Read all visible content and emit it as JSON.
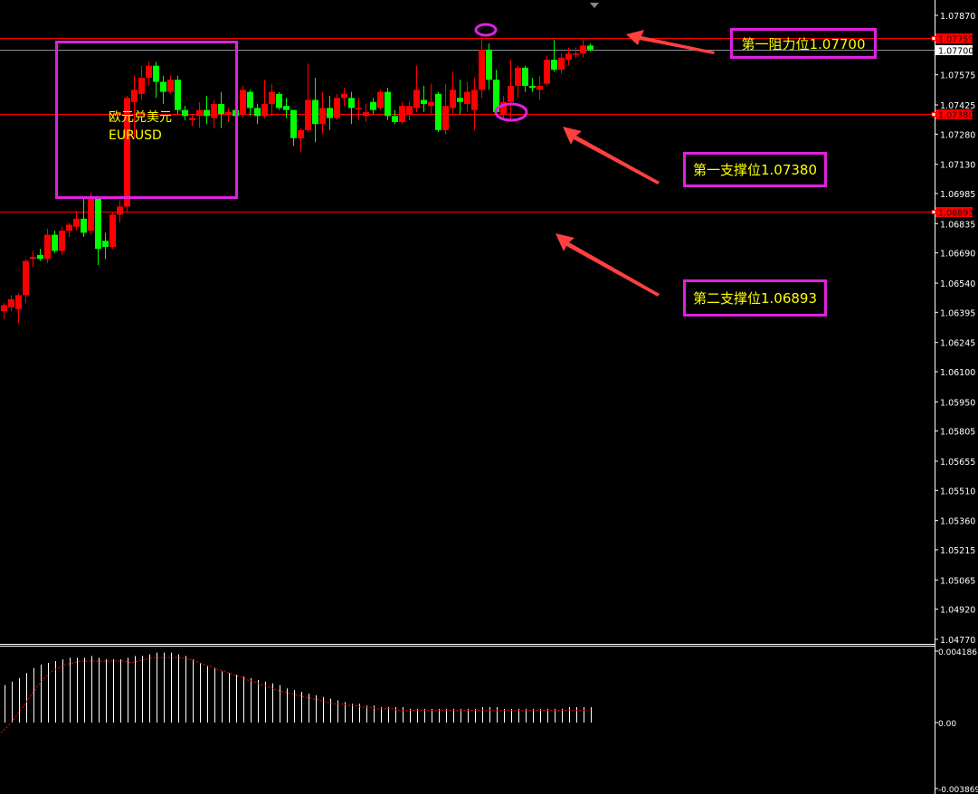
{
  "chart_data": {
    "type": "candlestick",
    "symbol_label": {
      "cn": "欧元兑美元",
      "en": "EURUSD"
    },
    "price_axis": {
      "range": [
        1.0477,
        1.0787
      ],
      "ticks": [
        "1.07870",
        "1.07575",
        "1.07425",
        "1.07280",
        "1.07130",
        "1.06985",
        "1.06835",
        "1.06690",
        "1.06540",
        "1.06395",
        "1.06245",
        "1.06100",
        "1.05950",
        "1.05805",
        "1.05655",
        "1.05510",
        "1.05360",
        "1.05215",
        "1.05065",
        "1.04920",
        "1.04770"
      ]
    },
    "price_markers": [
      {
        "price": "1.07759",
        "color": "#ff0000",
        "style": "red-line"
      },
      {
        "price": "1.07700",
        "color": "#ffffff",
        "style": "gray-line"
      },
      {
        "price": "1.07380",
        "color": "#ff0000",
        "style": "red-line"
      },
      {
        "price": "1.06893",
        "color": "#ff0000",
        "style": "red-line"
      }
    ],
    "colors": {
      "bull": "#ff0000",
      "bear": "#00ff00",
      "annotation": "#e020e0",
      "text": "#ffff00",
      "arrow": "#ff4040"
    },
    "candles_ohlc": [
      [
        1.064,
        1.0644,
        1.0636,
        1.0643
      ],
      [
        1.0642,
        1.0648,
        1.064,
        1.0646
      ],
      [
        1.0641,
        1.0649,
        1.0634,
        1.0648
      ],
      [
        1.0648,
        1.0666,
        1.0644,
        1.0665
      ],
      [
        1.0666,
        1.067,
        1.0662,
        1.0667
      ],
      [
        1.0668,
        1.0671,
        1.0665,
        1.0666
      ],
      [
        1.0666,
        1.0681,
        1.0664,
        1.0678
      ],
      [
        1.0678,
        1.068,
        1.0669,
        1.067
      ],
      [
        1.067,
        1.0682,
        1.0668,
        1.068
      ],
      [
        1.068,
        1.0684,
        1.0677,
        1.0683
      ],
      [
        1.0682,
        1.069,
        1.068,
        1.0686
      ],
      [
        1.0686,
        1.0696,
        1.0677,
        1.0679
      ],
      [
        1.068,
        1.0699,
        1.0678,
        1.0697
      ],
      [
        1.0696,
        1.0697,
        1.0663,
        1.0671
      ],
      [
        1.0675,
        1.0679,
        1.0666,
        1.0672
      ],
      [
        1.0672,
        1.0689,
        1.0671,
        1.0688
      ],
      [
        1.0688,
        1.0695,
        1.0684,
        1.0692
      ],
      [
        1.0692,
        1.0747,
        1.0689,
        1.0746
      ],
      [
        1.0744,
        1.0757,
        1.0726,
        1.075
      ],
      [
        1.0748,
        1.0762,
        1.0745,
        1.0756
      ],
      [
        1.0756,
        1.0764,
        1.0752,
        1.0762
      ],
      [
        1.0762,
        1.0764,
        1.0746,
        1.0754
      ],
      [
        1.0754,
        1.0757,
        1.0743,
        1.0749
      ],
      [
        1.0749,
        1.0757,
        1.0748,
        1.0755
      ],
      [
        1.0755,
        1.0757,
        1.0738,
        1.074
      ],
      [
        1.074,
        1.0742,
        1.0735,
        1.0737
      ],
      [
        1.0735,
        1.0738,
        1.0732,
        1.0736
      ],
      [
        1.0737,
        1.0744,
        1.0731,
        1.074
      ],
      [
        1.074,
        1.0747,
        1.0733,
        1.0737
      ],
      [
        1.0736,
        1.0745,
        1.0731,
        1.0743
      ],
      [
        1.0743,
        1.0749,
        1.0731,
        1.0738
      ],
      [
        1.0738,
        1.0741,
        1.0734,
        1.0739
      ],
      [
        1.074,
        1.0742,
        1.0736,
        1.0737
      ],
      [
        1.0738,
        1.0752,
        1.0736,
        1.075
      ],
      [
        1.0749,
        1.075,
        1.0737,
        1.0741
      ],
      [
        1.0741,
        1.0743,
        1.0733,
        1.0737
      ],
      [
        1.0737,
        1.0755,
        1.0736,
        1.0743
      ],
      [
        1.0743,
        1.0753,
        1.0737,
        1.0749
      ],
      [
        1.0748,
        1.0749,
        1.074,
        1.0741
      ],
      [
        1.0742,
        1.0746,
        1.0736,
        1.074
      ],
      [
        1.074,
        1.074,
        1.0722,
        1.0726
      ],
      [
        1.0726,
        1.0731,
        1.0719,
        1.073
      ],
      [
        1.073,
        1.0763,
        1.0729,
        1.0745
      ],
      [
        1.0745,
        1.0756,
        1.0724,
        1.0733
      ],
      [
        1.0733,
        1.0749,
        1.0728,
        1.0741
      ],
      [
        1.0741,
        1.0747,
        1.073,
        1.0736
      ],
      [
        1.0736,
        1.0748,
        1.0735,
        1.0746
      ],
      [
        1.0746,
        1.0751,
        1.0742,
        1.0748
      ],
      [
        1.0746,
        1.0749,
        1.0733,
        1.0741
      ],
      [
        1.0741,
        1.0746,
        1.0735,
        1.0741
      ],
      [
        1.0737,
        1.0743,
        1.0734,
        1.0739
      ],
      [
        1.0744,
        1.0746,
        1.0738,
        1.074
      ],
      [
        1.0741,
        1.075,
        1.074,
        1.0749
      ],
      [
        1.0749,
        1.0751,
        1.0735,
        1.0737
      ],
      [
        1.0737,
        1.074,
        1.0733,
        1.0734
      ],
      [
        1.0734,
        1.0744,
        1.0733,
        1.0742
      ],
      [
        1.0738,
        1.0744,
        1.0735,
        1.0742
      ],
      [
        1.0741,
        1.0762,
        1.0739,
        1.075
      ],
      [
        1.0745,
        1.0752,
        1.0739,
        1.0743
      ],
      [
        1.0742,
        1.0753,
        1.0738,
        1.0744
      ],
      [
        1.0748,
        1.0749,
        1.0729,
        1.073
      ],
      [
        1.073,
        1.0753,
        1.0728,
        1.0742
      ],
      [
        1.0741,
        1.0759,
        1.0738,
        1.075
      ],
      [
        1.0746,
        1.0755,
        1.0738,
        1.0744
      ],
      [
        1.0743,
        1.0754,
        1.0739,
        1.0749
      ],
      [
        1.074,
        1.0756,
        1.073,
        1.075
      ],
      [
        1.075,
        1.0776,
        1.0746,
        1.077
      ],
      [
        1.077,
        1.0773,
        1.075,
        1.0755
      ],
      [
        1.0755,
        1.076,
        1.0737,
        1.0739
      ],
      [
        1.0738,
        1.0747,
        1.0736,
        1.0744
      ],
      [
        1.0744,
        1.0765,
        1.0734,
        1.0752
      ],
      [
        1.0752,
        1.0762,
        1.0746,
        1.0761
      ],
      [
        1.0761,
        1.0762,
        1.0749,
        1.0752
      ],
      [
        1.0752,
        1.0756,
        1.0749,
        1.0751
      ],
      [
        1.075,
        1.0757,
        1.0745,
        1.0752
      ],
      [
        1.0753,
        1.0767,
        1.0752,
        1.0765
      ],
      [
        1.0765,
        1.0775,
        1.0759,
        1.076
      ],
      [
        1.076,
        1.0768,
        1.0758,
        1.0766
      ],
      [
        1.0765,
        1.0771,
        1.0762,
        1.0768
      ],
      [
        1.0768,
        1.0771,
        1.0766,
        1.0768
      ],
      [
        1.0768,
        1.0775,
        1.0766,
        1.0772
      ],
      [
        1.0772,
        1.0773,
        1.0769,
        1.077
      ]
    ],
    "macd": {
      "axis_labels": [
        "0.004186",
        "0.00",
        "-0.003869"
      ],
      "range": [
        -0.003869,
        0.004186
      ],
      "histogram": [
        0.0022,
        0.0024,
        0.0026,
        0.0029,
        0.0032,
        0.0034,
        0.0035,
        0.0036,
        0.0037,
        0.0038,
        0.0038,
        0.0038,
        0.0039,
        0.0038,
        0.0037,
        0.0037,
        0.0037,
        0.0038,
        0.0039,
        0.0039,
        0.004,
        0.0041,
        0.0041,
        0.0041,
        0.004,
        0.0039,
        0.0037,
        0.0035,
        0.0033,
        0.0032,
        0.003,
        0.0029,
        0.0028,
        0.0027,
        0.0026,
        0.0025,
        0.0024,
        0.0023,
        0.0022,
        0.002,
        0.0019,
        0.0018,
        0.0017,
        0.0016,
        0.0015,
        0.0014,
        0.0013,
        0.0012,
        0.0011,
        0.0011,
        0.001,
        0.001,
        0.0009,
        0.0009,
        0.0009,
        0.0009,
        0.0008,
        0.0008,
        0.0008,
        0.0008,
        0.0008,
        0.0008,
        0.0008,
        0.0008,
        0.0008,
        0.0008,
        0.0009,
        0.0009,
        0.0009,
        0.0008,
        0.0008,
        0.0008,
        0.0008,
        0.0008,
        0.0008,
        0.0008,
        0.0008,
        0.0008,
        0.0009,
        0.0009,
        0.0009,
        0.0009
      ],
      "signal": [
        -0.0006,
        -0.0002,
        0.0003,
        0.0009,
        0.0015,
        0.0021,
        0.0026,
        0.003,
        0.0032,
        0.0034,
        0.0035,
        0.0036,
        0.0036,
        0.0036,
        0.0036,
        0.0036,
        0.0036,
        0.0036,
        0.0035,
        0.0036,
        0.0037,
        0.0038,
        0.0038,
        0.0038,
        0.0038,
        0.0038,
        0.0037,
        0.0036,
        0.0034,
        0.0033,
        0.0031,
        0.003,
        0.0028,
        0.0027,
        0.0025,
        0.0024,
        0.0022,
        0.0021,
        0.0019,
        0.0018,
        0.0017,
        0.0016,
        0.0015,
        0.0014,
        0.0013,
        0.0012,
        0.0011,
        0.0011,
        0.001,
        0.001,
        0.0009,
        0.0009,
        0.0008,
        0.0008,
        0.0008,
        0.0007,
        0.0007,
        0.0007,
        0.0007,
        0.0007,
        0.0007,
        0.0007,
        0.0007,
        0.0007,
        0.0007,
        0.0007,
        0.0007,
        0.0007,
        0.0007,
        0.0007,
        0.0007,
        0.0007,
        0.0007,
        0.0007,
        0.0007,
        0.0007,
        0.0007,
        0.0007,
        0.0007,
        0.0007,
        0.0007,
        0.0007
      ]
    },
    "annotations": {
      "resistance_1": "第一阻力位1.07700",
      "support_1": "第一支撑位1.07380",
      "support_2": "第二支撑位1.06893"
    }
  }
}
